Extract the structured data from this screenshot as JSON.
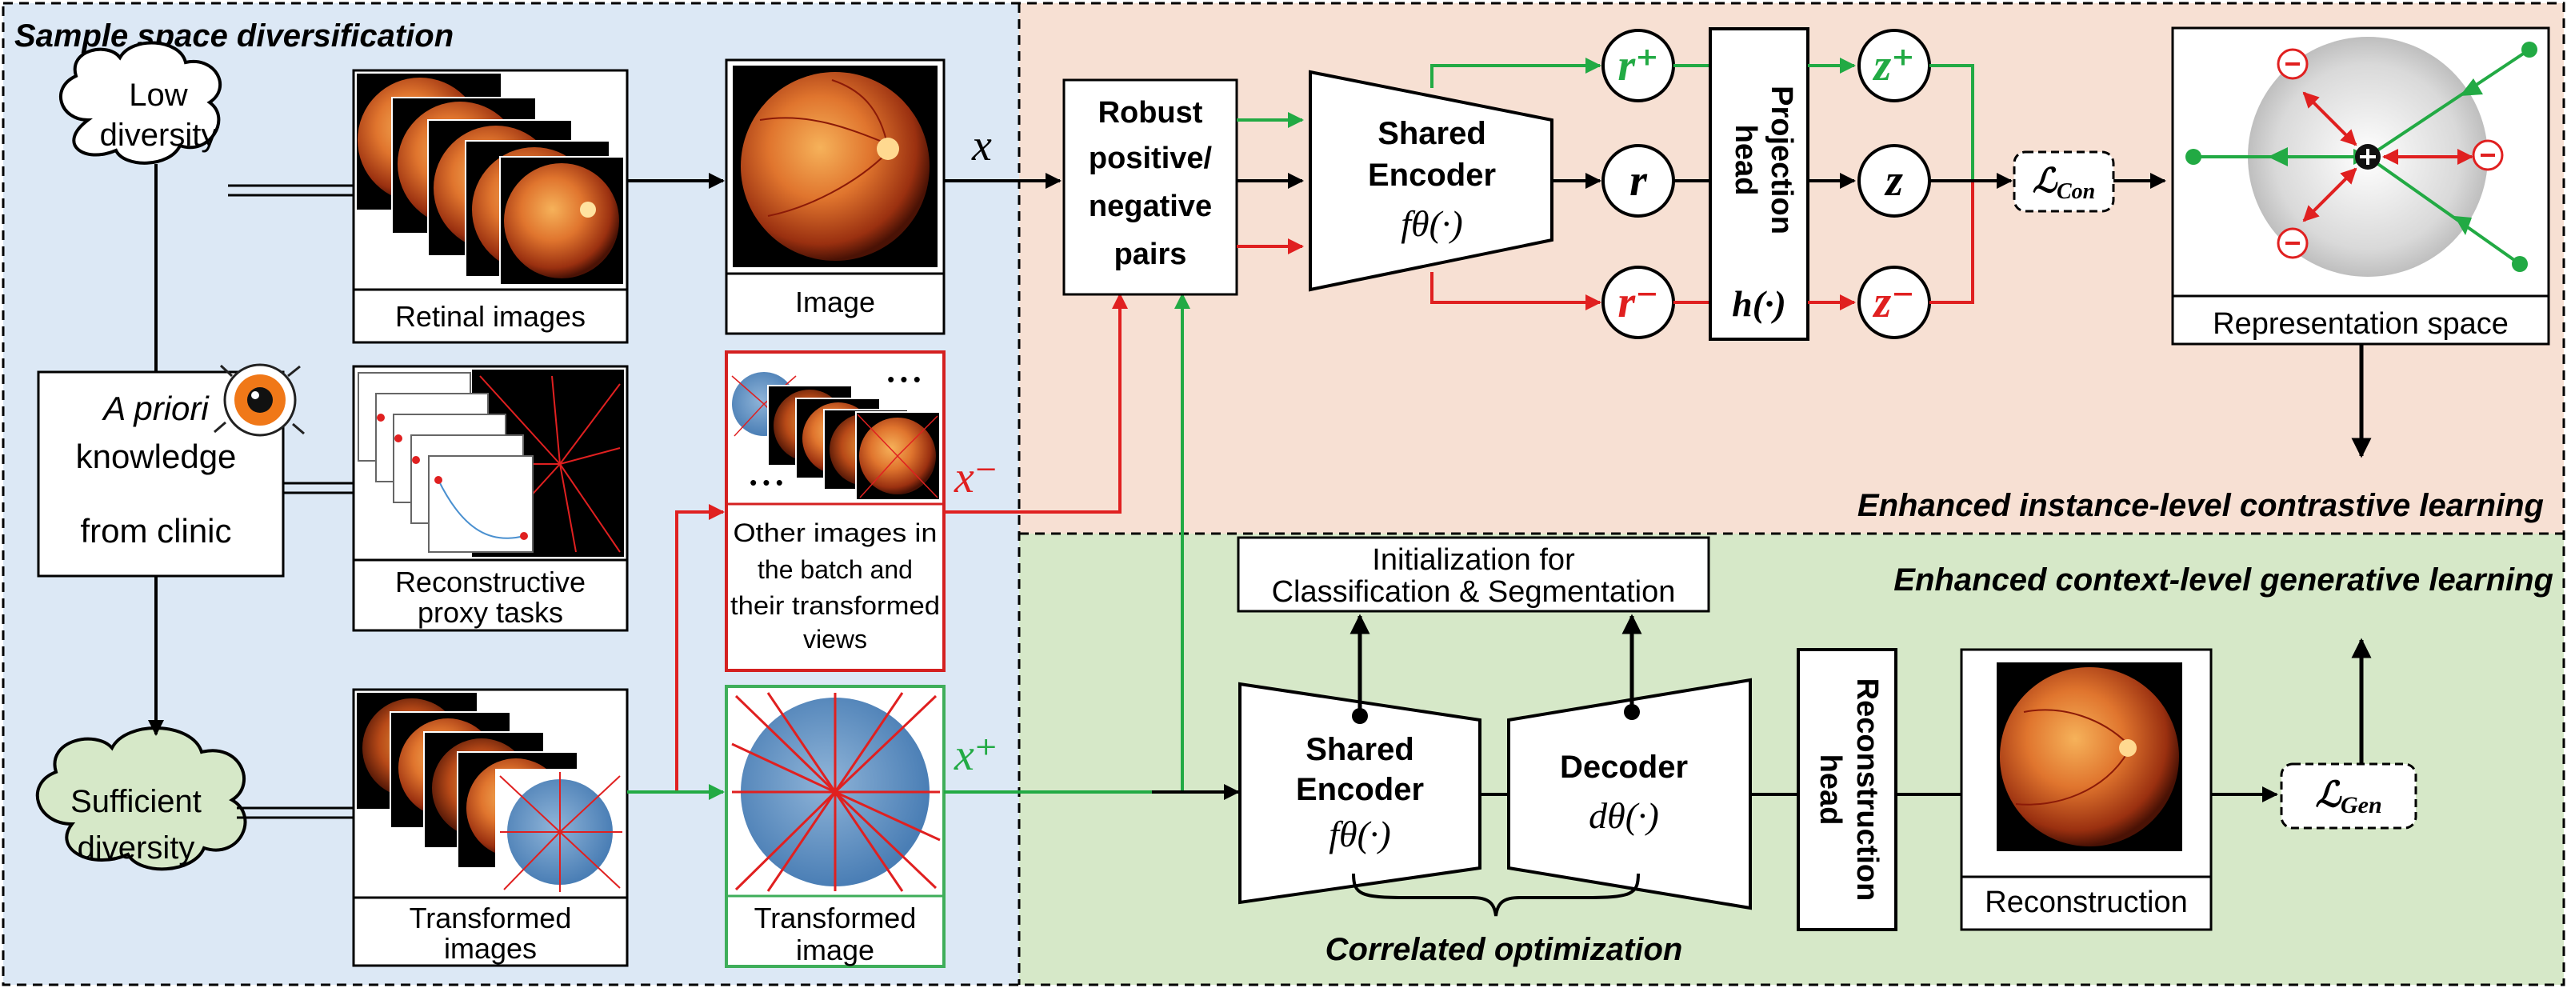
{
  "sections": {
    "sample_space": "Sample space diversification",
    "instance_level": "Enhanced instance-level  contrastive  learning",
    "context_level": "Enhanced context-level generative learning",
    "correlated": "Correlated optimization"
  },
  "clouds": {
    "low_line1": "Low",
    "low_line2": "diversity",
    "sufficient_line1": "Sufficient",
    "sufficient_line2": "diversity"
  },
  "priori": {
    "line1_italic": "A priori",
    "line2": "knowledge",
    "line3": "from clinic"
  },
  "captions": {
    "retinal_images": "Retinal images",
    "reconstructive_line1": "Reconstructive",
    "reconstructive_line2": "proxy tasks",
    "transformed_images_line1": "Transformed",
    "transformed_images_line2": "images",
    "image": "Image",
    "other_line1": "Other images in",
    "other_line2": "the batch and",
    "other_line3": "their transformed",
    "other_line4": "views",
    "transformed_image_line1": "Transformed",
    "transformed_image_line2": "image",
    "representation_space": "Representation space",
    "reconstruction": "Reconstruction"
  },
  "ellipsis": "• • •",
  "pairs": {
    "line1": "Robust",
    "line2": "positive/",
    "line3": "negative",
    "line4": "pairs"
  },
  "encoder_top": {
    "line1": "Shared",
    "line2": "Encoder",
    "func": "fθ(·)"
  },
  "encoder_bottom": {
    "line1": "Shared",
    "line2": "Encoder",
    "func": "fθ(·)"
  },
  "decoder": {
    "line1": "Decoder",
    "func": "dθ(·)"
  },
  "projection": {
    "line1": "Projection",
    "line2": "head",
    "func": "h(·)"
  },
  "reconstruction_head": {
    "line1": "Reconstruction",
    "line2": "head"
  },
  "init_box": {
    "line1": "Initialization  for",
    "line2": "Classification & Segmentation"
  },
  "vars": {
    "x": "x",
    "x_minus": "x⁻",
    "x_plus": "x⁺",
    "r_plus": "r⁺",
    "r": "r",
    "r_minus": "r⁻",
    "z_plus": "z⁺",
    "z": "z",
    "z_minus": "z⁻"
  },
  "losses": {
    "con": "ℒCon",
    "gen": "ℒGen"
  },
  "colors": {
    "blue_panel": "#dce8f5",
    "peach_panel": "#f7e0d3",
    "green_panel": "#d6e8c8",
    "cloud_green": "#d6e8c8",
    "pos_green": "#22aa44",
    "neg_red": "#e02020",
    "sample_red_border": "#d42020",
    "sample_green_border": "#3fae5a"
  }
}
